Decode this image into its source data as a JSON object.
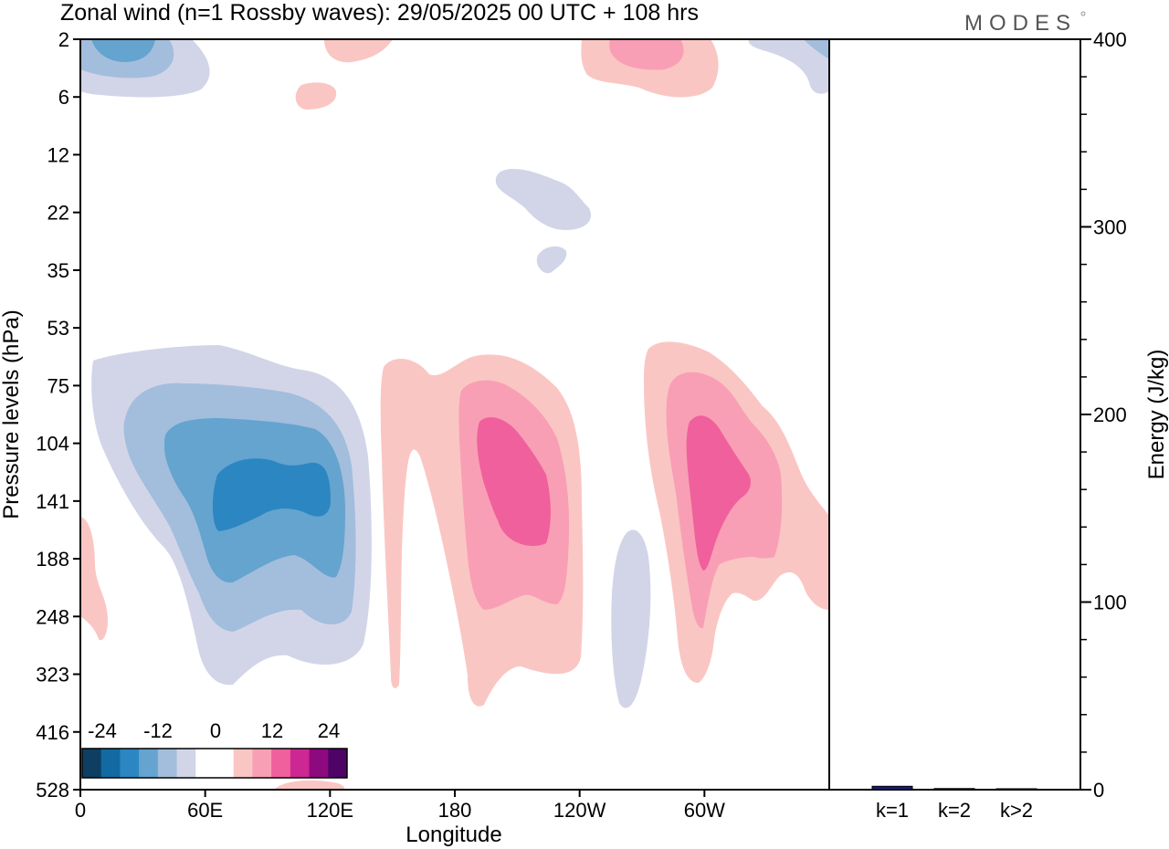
{
  "title": "Zonal wind (n=1 Rossby waves):  29/05/2025  00 UTC  + 108 hrs",
  "logo": "MODES",
  "chart_data": [
    {
      "type": "heatmap",
      "title": "Zonal wind (n=1 Rossby waves):  29/05/2025  00 UTC  + 108 hrs",
      "xlabel": "Longitude",
      "ylabel": "Pressure levels (hPa)",
      "x_ticks": [
        "0",
        "60E",
        "120E",
        "180",
        "120W",
        "60W"
      ],
      "x_tick_degrees": [
        0,
        60,
        120,
        180,
        240,
        300
      ],
      "x_range": [
        0,
        360
      ],
      "y_ticks": [
        "2",
        "6",
        "12",
        "22",
        "35",
        "53",
        "75",
        "104",
        "141",
        "188",
        "248",
        "323",
        "416",
        "528"
      ],
      "y_scale": "categorical (top to bottom)",
      "colorbar": {
        "labels": [
          "-24",
          "-12",
          "0",
          "12",
          "24"
        ],
        "colors": [
          "#0e3f63",
          "#136aa3",
          "#2c86c2",
          "#64a4cf",
          "#a3bddc",
          "#d2d5e8",
          "#ffffff",
          "#ffffff",
          "#fac6c3",
          "#f89fb5",
          "#f0609c",
          "#cd2793",
          "#8d0a7e",
          "#4e0466"
        ],
        "position": "bottom-left"
      },
      "regions": [
        {
          "sign": "negative",
          "level": "-24",
          "lon": 75,
          "pressure": 141,
          "note": "main negative core, 40E-130E, 53-323 hPa"
        },
        {
          "sign": "negative",
          "level": "-6",
          "lon": 15,
          "pressure": 2,
          "note": "upper-left negative patch"
        },
        {
          "sign": "negative",
          "level": "-3",
          "lon": 230,
          "pressure": 22,
          "note": "small negative patch"
        },
        {
          "sign": "negative",
          "level": "-3",
          "lon": 262,
          "pressure": 248,
          "note": "thin negative band"
        },
        {
          "sign": "positive",
          "level": "15",
          "lon": 200,
          "pressure": 141,
          "note": "positive core 150E-240E"
        },
        {
          "sign": "positive",
          "level": "15",
          "lon": 300,
          "pressure": 141,
          "note": "positive core 270W-360"
        },
        {
          "sign": "positive",
          "level": "6",
          "lon": 260,
          "pressure": 2,
          "note": "upper positive patch"
        }
      ]
    },
    {
      "type": "bar",
      "ylabel": "Energy (J/kg)",
      "categories": [
        "k=1",
        "k=2",
        "k>2"
      ],
      "values": [
        1.8,
        0.6,
        0.4
      ],
      "ylim": [
        0,
        400
      ],
      "y_ticks": [
        "0",
        "100",
        "200",
        "300",
        "400"
      ],
      "bar_color": "#1a1a7a"
    }
  ]
}
